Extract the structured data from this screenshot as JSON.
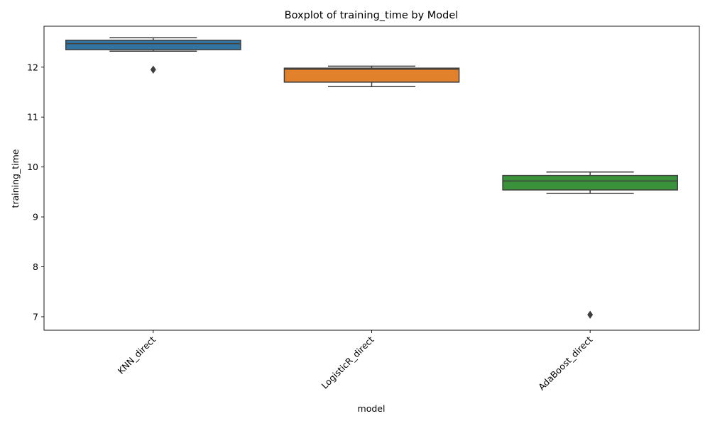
{
  "chart_data": {
    "type": "boxplot",
    "title": "Boxplot of training_time by Model",
    "xlabel": "model",
    "ylabel": "training_time",
    "ylim": [
      6.73,
      12.82
    ],
    "yticks": [
      7,
      8,
      9,
      10,
      11,
      12
    ],
    "grid": false,
    "categories": [
      "KNN_direct",
      "LogisticR_direct",
      "AdaBoost_direct"
    ],
    "boxes": [
      {
        "category": "KNN_direct",
        "whisker_low": 12.32,
        "q1": 12.35,
        "median": 12.47,
        "q3": 12.54,
        "whisker_high": 12.59,
        "outliers": [
          11.95
        ],
        "color": "#3274a1"
      },
      {
        "category": "LogisticR_direct",
        "whisker_low": 11.61,
        "q1": 11.7,
        "median": 11.96,
        "q3": 11.98,
        "whisker_high": 12.02,
        "outliers": [],
        "color": "#e1812c"
      },
      {
        "category": "AdaBoost_direct",
        "whisker_low": 9.47,
        "q1": 9.54,
        "median": 9.72,
        "q3": 9.83,
        "whisker_high": 9.9,
        "outliers": [
          7.04
        ],
        "color": "#3a923a"
      }
    ]
  }
}
